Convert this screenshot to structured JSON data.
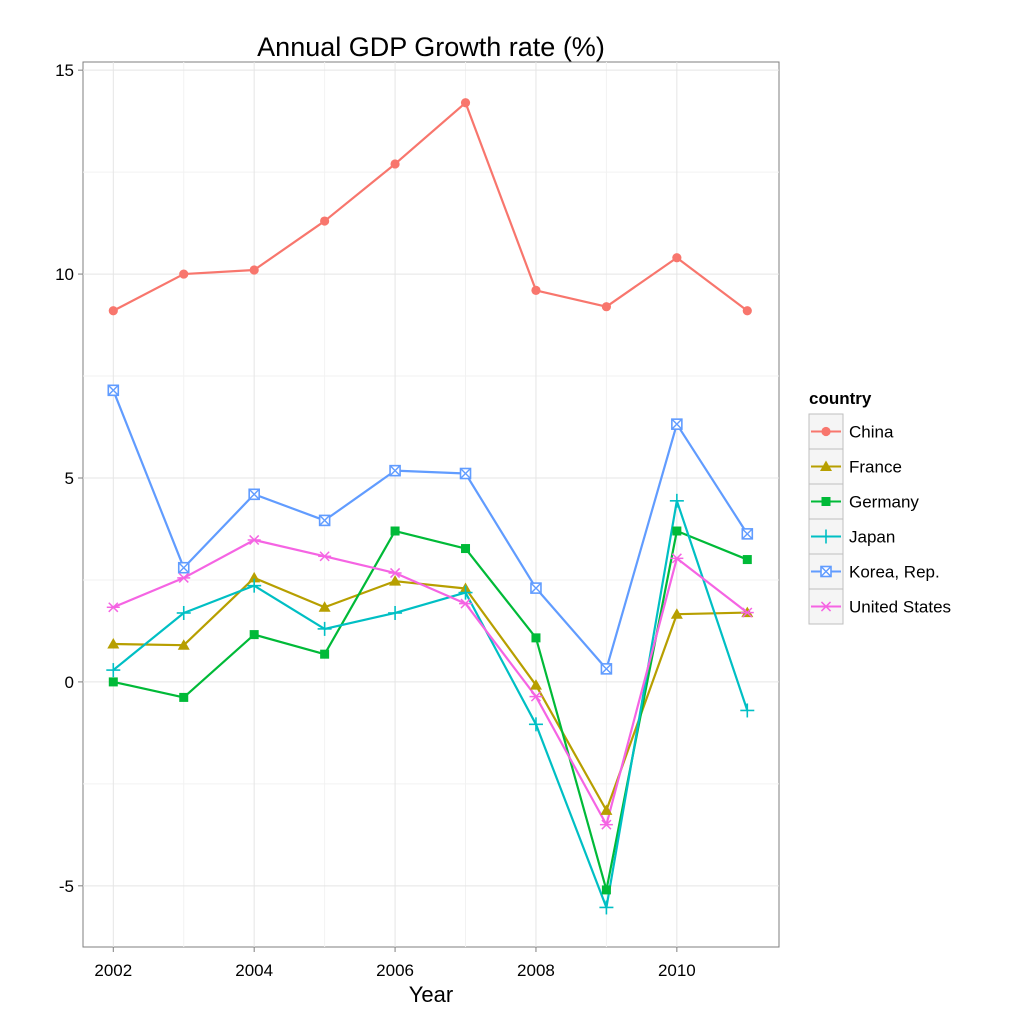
{
  "chart_data": {
    "type": "line",
    "title": "Annual GDP Growth rate (%)",
    "xlabel": "Year",
    "ylabel": "",
    "x": [
      2002,
      2003,
      2004,
      2005,
      2006,
      2007,
      2008,
      2009,
      2010,
      2011
    ],
    "xlim": [
      2001.57,
      2011.45
    ],
    "ylim": [
      -6.5,
      15.2
    ],
    "x_ticks": [
      2002,
      2004,
      2006,
      2008,
      2010
    ],
    "x_tick_labels": [
      "2002",
      "2004",
      "2006",
      "2008",
      "2010"
    ],
    "y_ticks": [
      -5,
      0,
      5,
      10,
      15
    ],
    "y_tick_labels": [
      "-5",
      "0",
      "5",
      "10",
      "15"
    ],
    "grid": true,
    "legend_title": "country",
    "legend_position": "right",
    "series": [
      {
        "name": "China",
        "color": "#F8766D",
        "marker": "circle",
        "values": [
          9.1,
          10.0,
          10.1,
          11.3,
          12.7,
          14.2,
          9.6,
          9.2,
          10.4,
          9.1
        ]
      },
      {
        "name": "France",
        "color": "#B79F00",
        "marker": "triangle",
        "values": [
          0.93,
          0.9,
          2.55,
          1.83,
          2.47,
          2.29,
          -0.08,
          -3.15,
          1.66,
          1.7
        ]
      },
      {
        "name": "Germany",
        "color": "#00BA38",
        "marker": "square",
        "values": [
          0.0,
          -0.38,
          1.16,
          0.68,
          3.7,
          3.27,
          1.08,
          -5.1,
          3.7,
          3.0
        ]
      },
      {
        "name": "Japan",
        "color": "#00BFC4",
        "marker": "plus",
        "values": [
          0.29,
          1.69,
          2.36,
          1.3,
          1.69,
          2.19,
          -1.04,
          -5.53,
          4.44,
          -0.7
        ]
      },
      {
        "name": "Korea, Rep.",
        "color": "#619CFF",
        "marker": "square-x",
        "values": [
          7.15,
          2.8,
          4.6,
          3.96,
          5.18,
          5.11,
          2.3,
          0.32,
          6.32,
          3.63
        ]
      },
      {
        "name": "United States",
        "color": "#F564E3",
        "marker": "asterisk",
        "values": [
          1.83,
          2.55,
          3.48,
          3.08,
          2.67,
          1.92,
          -0.36,
          -3.5,
          3.03,
          1.7
        ]
      }
    ]
  }
}
